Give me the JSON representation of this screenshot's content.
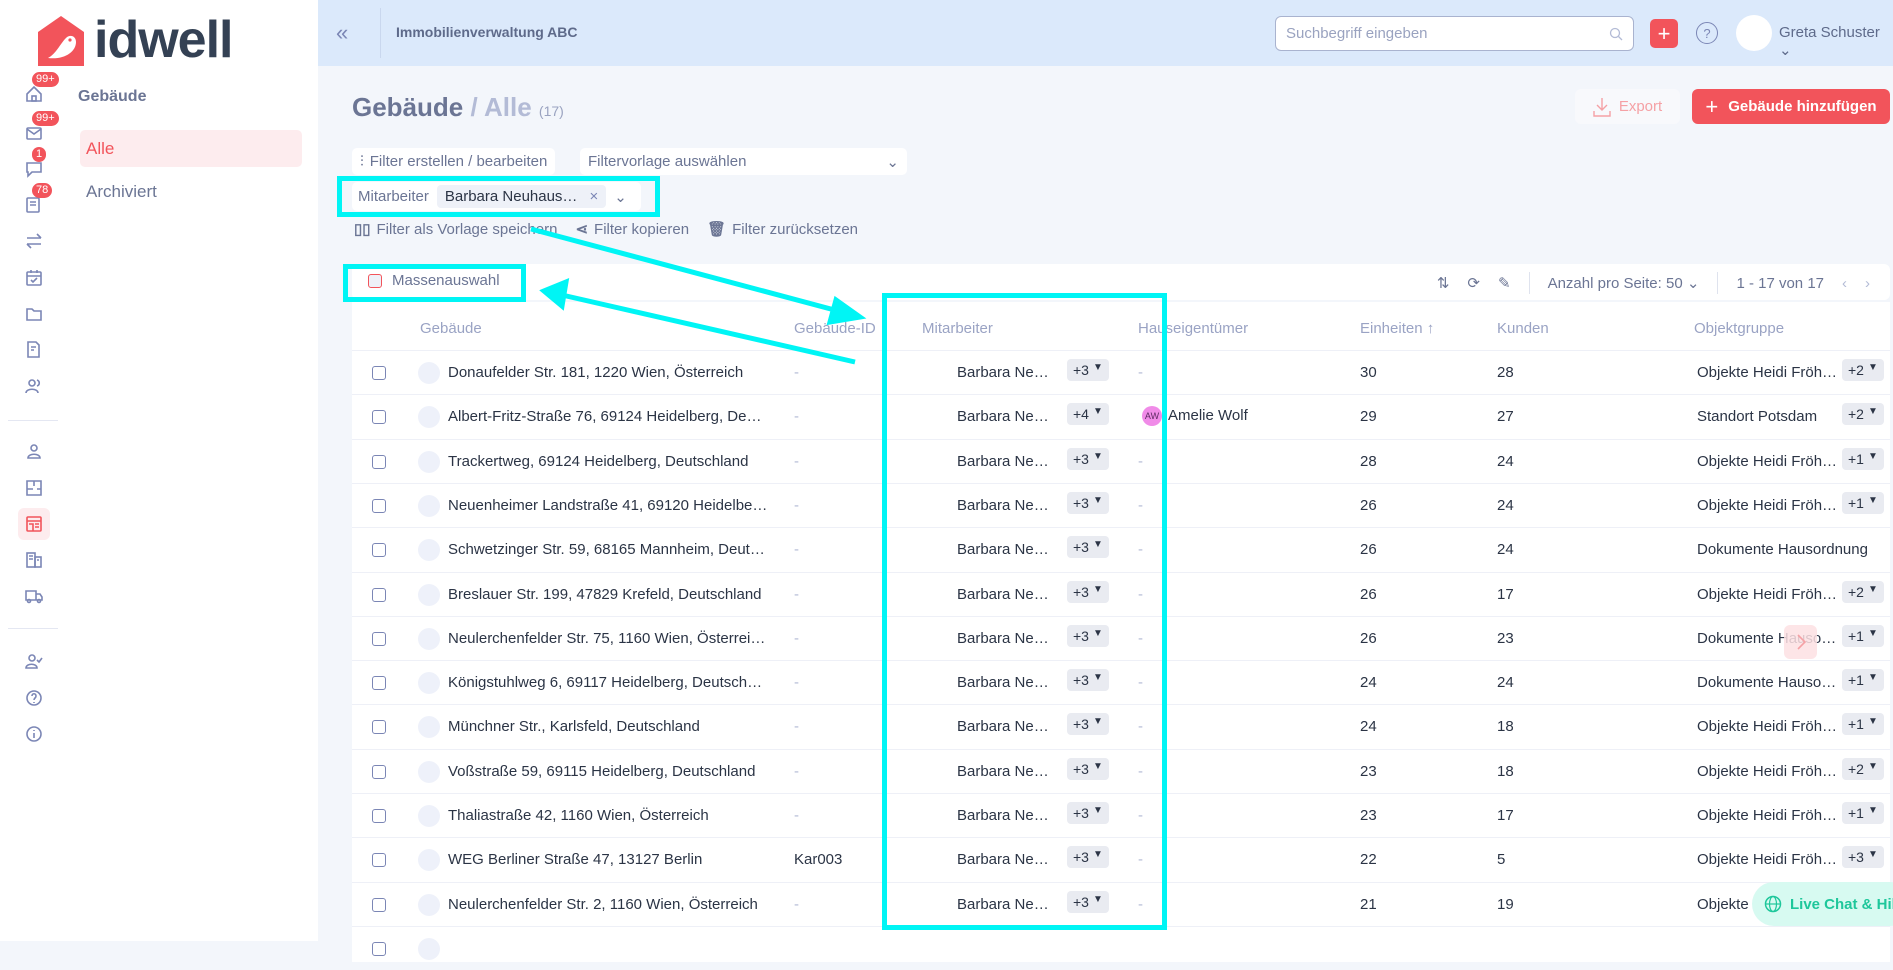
{
  "brand": {
    "name": "idwell",
    "accent": "#f2545b"
  },
  "sidebar": {
    "icons": [
      {
        "name": "home-icon",
        "badge": "99+"
      },
      {
        "name": "mail-icon",
        "badge": "99+"
      },
      {
        "name": "chat-icon",
        "badge": "1"
      },
      {
        "name": "tasks-icon",
        "badge": "78"
      },
      {
        "name": "transfer-icon",
        "badge": null
      },
      {
        "name": "calendar-icon",
        "badge": null
      },
      {
        "name": "folder-icon",
        "badge": null
      },
      {
        "name": "document-edit-icon",
        "badge": null
      },
      {
        "name": "users-icon",
        "badge": null
      },
      {
        "name": "person-icon",
        "badge": null
      },
      {
        "name": "floorplan-icon",
        "badge": null
      },
      {
        "name": "storefront-icon",
        "badge": null,
        "active": true
      },
      {
        "name": "buildings-icon",
        "badge": null
      },
      {
        "name": "truck-icon",
        "badge": null
      },
      {
        "name": "user-check-icon",
        "badge": null
      },
      {
        "name": "help-icon",
        "badge": null
      },
      {
        "name": "info-icon",
        "badge": null
      }
    ],
    "section_title": "Gebäude",
    "items": [
      {
        "label": "Alle",
        "active": true
      },
      {
        "label": "Archiviert",
        "active": false
      }
    ]
  },
  "header": {
    "company": "Immobilienverwaltung ABC",
    "search_placeholder": "Suchbegriff eingeben",
    "user": "Greta Schuster"
  },
  "page": {
    "title": "Gebäude",
    "separator": "/",
    "subtitle": "Alle",
    "count": "(17)",
    "export_label": "Export",
    "add_label": "Gebäude hinzufügen"
  },
  "filters": {
    "edit_label": "Filter erstellen / bearbeiten",
    "template_placeholder": "Filtervorlage auswählen",
    "active_filter_label": "Mitarbeiter",
    "active_filter_value": "Barbara Neuhaus…",
    "save_template": "Filter als Vorlage speichern",
    "copy": "Filter kopieren",
    "reset": "Filter zurücksetzen"
  },
  "toolbar": {
    "mass_select": "Massenauswahl",
    "per_page_label": "Anzahl pro Seite:",
    "per_page": "50",
    "range": "1 - 17 von 17"
  },
  "table": {
    "columns": [
      "Gebäude",
      "Gebäude-ID",
      "Mitarbeiter",
      "Hauseigentümer",
      "Einheiten ↑",
      "Kunden",
      "Objektgruppe"
    ],
    "rows": [
      {
        "building": "Donaufelder Str. 181, 1220 Wien, Österreich",
        "id": "-",
        "staff": "Barbara Ne…",
        "staff_more": "+3",
        "owner": "-",
        "owner_initials": "",
        "units": "30",
        "customers": "28",
        "group": "Objekte Heidi Fröh…",
        "group_more": "+2"
      },
      {
        "building": "Albert-Fritz-Straße 76, 69124 Heidelberg, De…",
        "id": "-",
        "staff": "Barbara Ne…",
        "staff_more": "+4",
        "owner": "Amelie Wolf",
        "owner_initials": "AW",
        "units": "29",
        "customers": "27",
        "group": "Standort Potsdam",
        "group_more": "+2"
      },
      {
        "building": "Trackertweg, 69124 Heidelberg, Deutschland",
        "id": "-",
        "staff": "Barbara Ne…",
        "staff_more": "+3",
        "owner": "-",
        "owner_initials": "",
        "units": "28",
        "customers": "24",
        "group": "Objekte Heidi Fröh…",
        "group_more": "+1"
      },
      {
        "building": "Neuenheimer Landstraße 41, 69120 Heidelbe…",
        "id": "-",
        "staff": "Barbara Ne…",
        "staff_more": "+3",
        "owner": "-",
        "owner_initials": "",
        "units": "26",
        "customers": "24",
        "group": "Objekte Heidi Fröh…",
        "group_more": "+1"
      },
      {
        "building": "Schwetzinger Str. 59, 68165 Mannheim, Deut…",
        "id": "-",
        "staff": "Barbara Ne…",
        "staff_more": "+3",
        "owner": "-",
        "owner_initials": "",
        "units": "26",
        "customers": "24",
        "group": "Dokumente Hausordnung",
        "group_more": ""
      },
      {
        "building": "Breslauer Str. 199, 47829 Krefeld, Deutschland",
        "id": "-",
        "staff": "Barbara Ne…",
        "staff_more": "+3",
        "owner": "-",
        "owner_initials": "",
        "units": "26",
        "customers": "17",
        "group": "Objekte Heidi Fröh…",
        "group_more": "+2"
      },
      {
        "building": "Neulerchenfelder Str. 75, 1160 Wien, Österrei…",
        "id": "-",
        "staff": "Barbara Ne…",
        "staff_more": "+3",
        "owner": "-",
        "owner_initials": "",
        "units": "26",
        "customers": "23",
        "group": "Dokumente Hauso…",
        "group_more": "+1"
      },
      {
        "building": "Königstuhlweg 6, 69117 Heidelberg, Deutsch…",
        "id": "-",
        "staff": "Barbara Ne…",
        "staff_more": "+3",
        "owner": "-",
        "owner_initials": "",
        "units": "24",
        "customers": "24",
        "group": "Dokumente Hauso…",
        "group_more": "+1"
      },
      {
        "building": "Münchner Str., Karlsfeld, Deutschland",
        "id": "-",
        "staff": "Barbara Ne…",
        "staff_more": "+3",
        "owner": "-",
        "owner_initials": "",
        "units": "24",
        "customers": "18",
        "group": "Objekte Heidi Fröh…",
        "group_more": "+1"
      },
      {
        "building": "Voßstraße 59, 69115 Heidelberg, Deutschland",
        "id": "-",
        "staff": "Barbara Ne…",
        "staff_more": "+3",
        "owner": "-",
        "owner_initials": "",
        "units": "23",
        "customers": "18",
        "group": "Objekte Heidi Fröh…",
        "group_more": "+2"
      },
      {
        "building": "Thaliastraße 42, 1160 Wien, Österreich",
        "id": "-",
        "staff": "Barbara Ne…",
        "staff_more": "+3",
        "owner": "-",
        "owner_initials": "",
        "units": "23",
        "customers": "17",
        "group": "Objekte Heidi Fröh…",
        "group_more": "+1"
      },
      {
        "building": "WEG Berliner Straße 47, 13127 Berlin",
        "id": "Kar003",
        "staff": "Barbara Ne…",
        "staff_more": "+3",
        "owner": "-",
        "owner_initials": "",
        "units": "22",
        "customers": "5",
        "group": "Objekte Heidi Fröh…",
        "group_more": "+3"
      },
      {
        "building": "Neulerchenfelder Str. 2, 1160 Wien, Österreich",
        "id": "-",
        "staff": "Barbara Ne…",
        "staff_more": "+3",
        "owner": "-",
        "owner_initials": "",
        "units": "21",
        "customers": "19",
        "group": "Objekte",
        "group_more": ""
      }
    ]
  },
  "live_chat": "Live Chat & Hilfe"
}
